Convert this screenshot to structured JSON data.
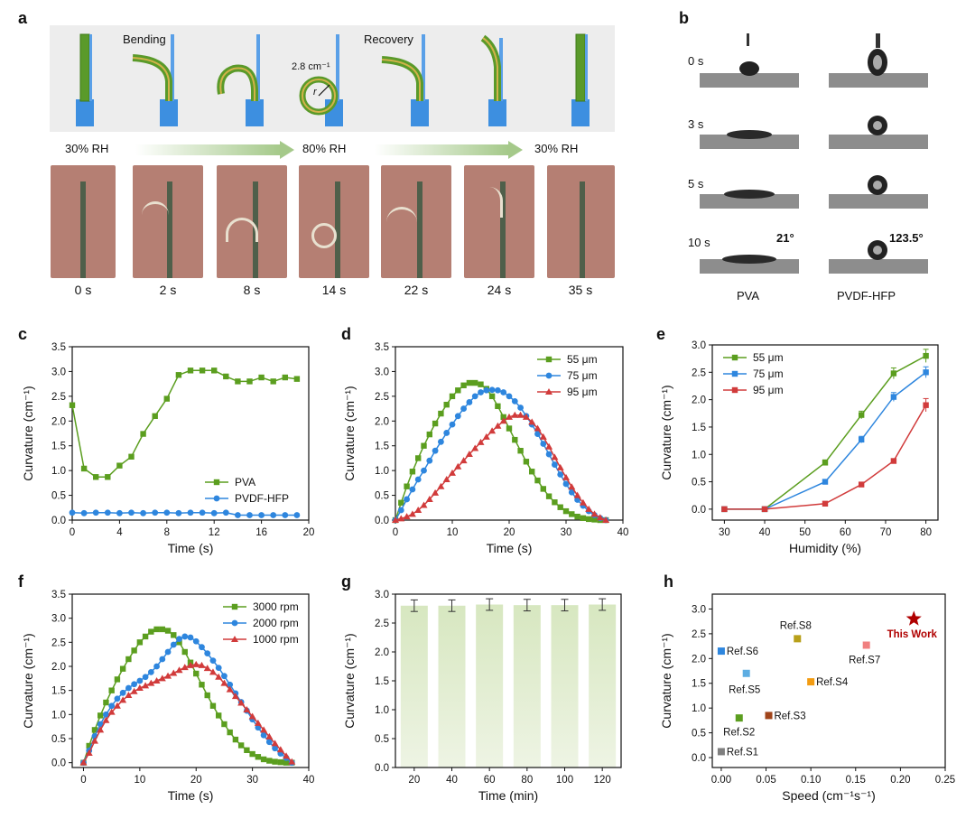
{
  "panels": {
    "a": {
      "letter": "a",
      "bending_label": "Bending",
      "recovery_label": "Recovery",
      "curvature_note": "2.8 cm⁻¹",
      "radius_symbol": "r",
      "rh_labels": [
        "30% RH",
        "80% RH",
        "30% RH"
      ],
      "times": [
        "0 s",
        "2 s",
        "8 s",
        "14 s",
        "22 s",
        "24 s",
        "35 s"
      ]
    },
    "b": {
      "letter": "b",
      "times": [
        "0 s",
        "3 s",
        "5 s",
        "10 s"
      ],
      "angle_pva": "21°",
      "angle_pvdf": "123.5°",
      "col_pva": "PVA",
      "col_pvdf": "PVDF-HFP"
    },
    "c": {
      "letter": "c"
    },
    "d": {
      "letter": "d"
    },
    "e": {
      "letter": "e"
    },
    "f": {
      "letter": "f"
    },
    "g": {
      "letter": "g"
    },
    "h": {
      "letter": "h"
    }
  },
  "colors": {
    "green": "#5b9e1f",
    "blue": "#2e86de",
    "red": "#d13b3b",
    "bar": "#d7e7c0"
  },
  "chart_data": [
    {
      "id": "c",
      "type": "line",
      "xlabel": "Time (s)",
      "ylabel": "Curvature (cm⁻¹)",
      "xlim": [
        0,
        20
      ],
      "ylim": [
        0,
        3.5
      ],
      "xticks": [
        0,
        4,
        8,
        12,
        16,
        20
      ],
      "yticks": [
        0.0,
        0.5,
        1.0,
        1.5,
        2.0,
        2.5,
        3.0,
        3.5
      ],
      "legend": "bottom-right",
      "series": [
        {
          "name": "PVA",
          "marker": "square",
          "color": "#5b9e1f",
          "x": [
            0,
            1,
            2,
            3,
            4,
            5,
            6,
            7,
            8,
            9,
            10,
            11,
            12,
            13,
            14,
            15,
            16,
            17,
            18,
            19
          ],
          "y": [
            2.32,
            1.04,
            0.87,
            0.87,
            1.1,
            1.28,
            1.74,
            2.1,
            2.45,
            2.93,
            3.02,
            3.02,
            3.02,
            2.9,
            2.8,
            2.8,
            2.88,
            2.8,
            2.88,
            2.85
          ]
        },
        {
          "name": "PVDF-HFP",
          "marker": "circle",
          "color": "#2e86de",
          "x": [
            0,
            1,
            2,
            3,
            4,
            5,
            6,
            7,
            8,
            9,
            10,
            11,
            12,
            13,
            14,
            15,
            16,
            17,
            18,
            19
          ],
          "y": [
            0.15,
            0.14,
            0.15,
            0.15,
            0.14,
            0.15,
            0.14,
            0.15,
            0.15,
            0.14,
            0.15,
            0.15,
            0.14,
            0.15,
            0.1,
            0.1,
            0.1,
            0.1,
            0.1,
            0.1
          ]
        }
      ]
    },
    {
      "id": "d",
      "type": "line",
      "xlabel": "Time (s)",
      "ylabel": "Curvature (cm⁻¹)",
      "xlim": [
        0,
        40
      ],
      "ylim": [
        0,
        3.5
      ],
      "xticks": [
        0,
        10,
        20,
        30,
        40
      ],
      "yticks": [
        0.0,
        0.5,
        1.0,
        1.5,
        2.0,
        2.5,
        3.0,
        3.5
      ],
      "legend": "top-right",
      "series": [
        {
          "name": "55 μm",
          "marker": "square",
          "color": "#5b9e1f",
          "x": [
            0,
            1,
            2,
            3,
            4,
            5,
            6,
            7,
            8,
            9,
            10,
            11,
            12,
            13,
            14,
            15,
            16,
            17,
            18,
            19,
            20,
            21,
            22,
            23,
            24,
            25,
            26,
            27,
            28,
            29,
            30,
            31,
            32,
            33,
            34,
            35,
            36,
            37
          ],
          "y": [
            0.0,
            0.35,
            0.68,
            0.98,
            1.25,
            1.5,
            1.73,
            1.95,
            2.15,
            2.33,
            2.5,
            2.62,
            2.72,
            2.77,
            2.77,
            2.74,
            2.65,
            2.5,
            2.3,
            2.08,
            1.85,
            1.62,
            1.4,
            1.18,
            0.98,
            0.8,
            0.63,
            0.48,
            0.36,
            0.26,
            0.18,
            0.12,
            0.07,
            0.04,
            0.02,
            0.01,
            0.0,
            0.0
          ]
        },
        {
          "name": "75 μm",
          "marker": "circle",
          "color": "#2e86de",
          "x": [
            0,
            1,
            2,
            3,
            4,
            5,
            6,
            7,
            8,
            9,
            10,
            11,
            12,
            13,
            14,
            15,
            16,
            17,
            18,
            19,
            20,
            21,
            22,
            23,
            24,
            25,
            26,
            27,
            28,
            29,
            30,
            31,
            32,
            33,
            34,
            35,
            36,
            37
          ],
          "y": [
            0.0,
            0.2,
            0.42,
            0.62,
            0.82,
            1.0,
            1.2,
            1.4,
            1.58,
            1.76,
            1.93,
            2.1,
            2.25,
            2.38,
            2.5,
            2.58,
            2.62,
            2.63,
            2.62,
            2.58,
            2.5,
            2.4,
            2.27,
            2.1,
            1.93,
            1.74,
            1.54,
            1.33,
            1.12,
            0.92,
            0.73,
            0.56,
            0.41,
            0.29,
            0.18,
            0.1,
            0.04,
            0.0
          ]
        },
        {
          "name": "95 μm",
          "marker": "triangle",
          "color": "#d13b3b",
          "x": [
            0,
            1,
            2,
            3,
            4,
            5,
            6,
            7,
            8,
            9,
            10,
            11,
            12,
            13,
            14,
            15,
            16,
            17,
            18,
            19,
            20,
            21,
            22,
            23,
            24,
            25,
            26,
            27,
            28,
            29,
            30,
            31,
            32,
            33,
            34,
            35,
            36,
            37
          ],
          "y": [
            0.0,
            0.03,
            0.07,
            0.12,
            0.2,
            0.3,
            0.42,
            0.55,
            0.68,
            0.82,
            0.95,
            1.08,
            1.2,
            1.33,
            1.45,
            1.57,
            1.68,
            1.8,
            1.9,
            2.0,
            2.08,
            2.12,
            2.12,
            2.08,
            1.98,
            1.85,
            1.68,
            1.48,
            1.27,
            1.06,
            0.86,
            0.67,
            0.5,
            0.35,
            0.22,
            0.12,
            0.05,
            0.0
          ]
        }
      ]
    },
    {
      "id": "e",
      "type": "line",
      "xlabel": "Humidity (%)",
      "ylabel": "Curvature (cm⁻¹)",
      "xlim": [
        27,
        83
      ],
      "ylim": [
        -0.2,
        3.0
      ],
      "xticks": [
        30,
        40,
        50,
        60,
        70,
        80
      ],
      "yticks": [
        0.0,
        0.5,
        1.0,
        1.5,
        2.0,
        2.5,
        3.0
      ],
      "legend": "top-left",
      "series": [
        {
          "name": "55 μm",
          "marker": "square",
          "color": "#5b9e1f",
          "x": [
            30,
            40,
            55,
            64,
            72,
            80
          ],
          "y": [
            0.0,
            0.0,
            0.85,
            1.72,
            2.48,
            2.8
          ],
          "err": [
            0,
            0,
            0.05,
            0.07,
            0.1,
            0.12
          ]
        },
        {
          "name": "75 μm",
          "marker": "square",
          "color": "#2e86de",
          "x": [
            30,
            40,
            55,
            64,
            72,
            80
          ],
          "y": [
            0.0,
            0.0,
            0.5,
            1.27,
            2.05,
            2.5
          ],
          "err": [
            0,
            0,
            0.03,
            0.06,
            0.08,
            0.1
          ]
        },
        {
          "name": "95 μm",
          "marker": "square",
          "color": "#d13b3b",
          "x": [
            30,
            40,
            55,
            64,
            72,
            80
          ],
          "y": [
            0.0,
            0.0,
            0.1,
            0.45,
            0.88,
            1.9
          ],
          "err": [
            0,
            0,
            0.02,
            0.03,
            0.04,
            0.12
          ]
        }
      ]
    },
    {
      "id": "f",
      "type": "line",
      "xlabel": "Time (s)",
      "ylabel": "Curvature (cm⁻¹)",
      "xlim": [
        -2,
        40
      ],
      "ylim": [
        -0.1,
        3.5
      ],
      "xticks": [
        0,
        10,
        20,
        30,
        40
      ],
      "yticks": [
        0.0,
        0.5,
        1.0,
        1.5,
        2.0,
        2.5,
        3.0,
        3.5
      ],
      "legend": "top-right",
      "series": [
        {
          "name": "3000 rpm",
          "marker": "square",
          "color": "#5b9e1f",
          "x": [
            0,
            1,
            2,
            3,
            4,
            5,
            6,
            7,
            8,
            9,
            10,
            11,
            12,
            13,
            14,
            15,
            16,
            17,
            18,
            19,
            20,
            21,
            22,
            23,
            24,
            25,
            26,
            27,
            28,
            29,
            30,
            31,
            32,
            33,
            34,
            35,
            36,
            37
          ],
          "y": [
            0.0,
            0.35,
            0.68,
            0.98,
            1.25,
            1.5,
            1.73,
            1.95,
            2.15,
            2.33,
            2.5,
            2.62,
            2.72,
            2.77,
            2.77,
            2.74,
            2.65,
            2.5,
            2.3,
            2.08,
            1.85,
            1.62,
            1.4,
            1.18,
            0.98,
            0.8,
            0.63,
            0.48,
            0.36,
            0.26,
            0.18,
            0.12,
            0.07,
            0.04,
            0.02,
            0.01,
            0.0,
            0.0
          ]
        },
        {
          "name": "2000 rpm",
          "marker": "circle",
          "color": "#2e86de",
          "x": [
            0,
            1,
            2,
            3,
            4,
            5,
            6,
            7,
            8,
            9,
            10,
            11,
            12,
            13,
            14,
            15,
            16,
            17,
            18,
            19,
            20,
            21,
            22,
            23,
            24,
            25,
            26,
            27,
            28,
            29,
            30,
            31,
            32,
            33,
            34,
            35,
            36,
            37
          ],
          "y": [
            0.0,
            0.25,
            0.55,
            0.8,
            1.0,
            1.18,
            1.33,
            1.45,
            1.55,
            1.63,
            1.7,
            1.78,
            1.88,
            2.0,
            2.15,
            2.3,
            2.45,
            2.57,
            2.62,
            2.6,
            2.52,
            2.4,
            2.27,
            2.12,
            1.97,
            1.8,
            1.62,
            1.44,
            1.26,
            1.08,
            0.9,
            0.73,
            0.57,
            0.43,
            0.3,
            0.19,
            0.1,
            0.0
          ]
        },
        {
          "name": "1000 rpm",
          "marker": "triangle",
          "color": "#d13b3b",
          "x": [
            0,
            1,
            2,
            3,
            4,
            5,
            6,
            7,
            8,
            9,
            10,
            11,
            12,
            13,
            14,
            15,
            16,
            17,
            18,
            19,
            20,
            21,
            22,
            23,
            24,
            25,
            26,
            27,
            28,
            29,
            30,
            31,
            32,
            33,
            34,
            35,
            36,
            37
          ],
          "y": [
            0.0,
            0.2,
            0.45,
            0.68,
            0.88,
            1.05,
            1.18,
            1.3,
            1.4,
            1.48,
            1.55,
            1.6,
            1.65,
            1.7,
            1.75,
            1.8,
            1.86,
            1.92,
            1.98,
            2.02,
            2.04,
            2.02,
            1.96,
            1.88,
            1.78,
            1.65,
            1.52,
            1.38,
            1.24,
            1.1,
            0.96,
            0.82,
            0.68,
            0.54,
            0.4,
            0.27,
            0.14,
            0.02
          ]
        }
      ]
    },
    {
      "id": "g",
      "type": "bar",
      "xlabel": "Time (min)",
      "ylabel": "Curvature (cm⁻¹)",
      "ylim": [
        0,
        3.0
      ],
      "yticks": [
        0.0,
        0.5,
        1.0,
        1.5,
        2.0,
        2.5,
        3.0
      ],
      "categories": [
        "20",
        "40",
        "60",
        "80",
        "100",
        "120"
      ],
      "values": [
        2.8,
        2.8,
        2.82,
        2.81,
        2.81,
        2.82
      ],
      "err": [
        0.1,
        0.1,
        0.1,
        0.1,
        0.1,
        0.1
      ]
    },
    {
      "id": "h",
      "type": "scatter",
      "xlabel": "Speed (cm⁻¹s⁻¹)",
      "ylabel": "Curvature (cm⁻¹)",
      "xlim": [
        -0.01,
        0.25
      ],
      "ylim": [
        -0.2,
        3.3
      ],
      "xticks": [
        0.0,
        0.05,
        0.1,
        0.15,
        0.2,
        0.25
      ],
      "yticks": [
        0.0,
        0.5,
        1.0,
        1.5,
        2.0,
        2.5,
        3.0
      ],
      "points": [
        {
          "label": "Ref.S1",
          "x": 0.0,
          "y": 0.12,
          "color": "#7f7f7f",
          "lx": 0.006,
          "ly": 0.12,
          "anchor": "start"
        },
        {
          "label": "Ref.S2",
          "x": 0.02,
          "y": 0.8,
          "color": "#5b9e1f",
          "lx": 0.02,
          "ly": 0.52,
          "anchor": "middle"
        },
        {
          "label": "Ref.S3",
          "x": 0.053,
          "y": 0.85,
          "color": "#a0441a",
          "lx": 0.059,
          "ly": 0.85,
          "anchor": "start"
        },
        {
          "label": "Ref.S4",
          "x": 0.1,
          "y": 1.53,
          "color": "#f39c12",
          "lx": 0.106,
          "ly": 1.53,
          "anchor": "start"
        },
        {
          "label": "Ref.S5",
          "x": 0.028,
          "y": 1.7,
          "color": "#5dade2",
          "lx": 0.026,
          "ly": 1.38,
          "anchor": "middle"
        },
        {
          "label": "Ref.S6",
          "x": 0.0,
          "y": 2.15,
          "color": "#2e86de",
          "lx": 0.006,
          "ly": 2.15,
          "anchor": "start"
        },
        {
          "label": "Ref.S7",
          "x": 0.162,
          "y": 2.27,
          "color": "#f08080",
          "lx": 0.16,
          "ly": 1.98,
          "anchor": "middle"
        },
        {
          "label": "Ref.S8",
          "x": 0.085,
          "y": 2.4,
          "color": "#b8a01a",
          "lx": 0.083,
          "ly": 2.67,
          "anchor": "middle"
        },
        {
          "label": "This Work",
          "x": 0.215,
          "y": 2.8,
          "color": "#b00000",
          "lx": 0.213,
          "ly": 2.5,
          "anchor": "middle",
          "star": true
        }
      ]
    }
  ]
}
